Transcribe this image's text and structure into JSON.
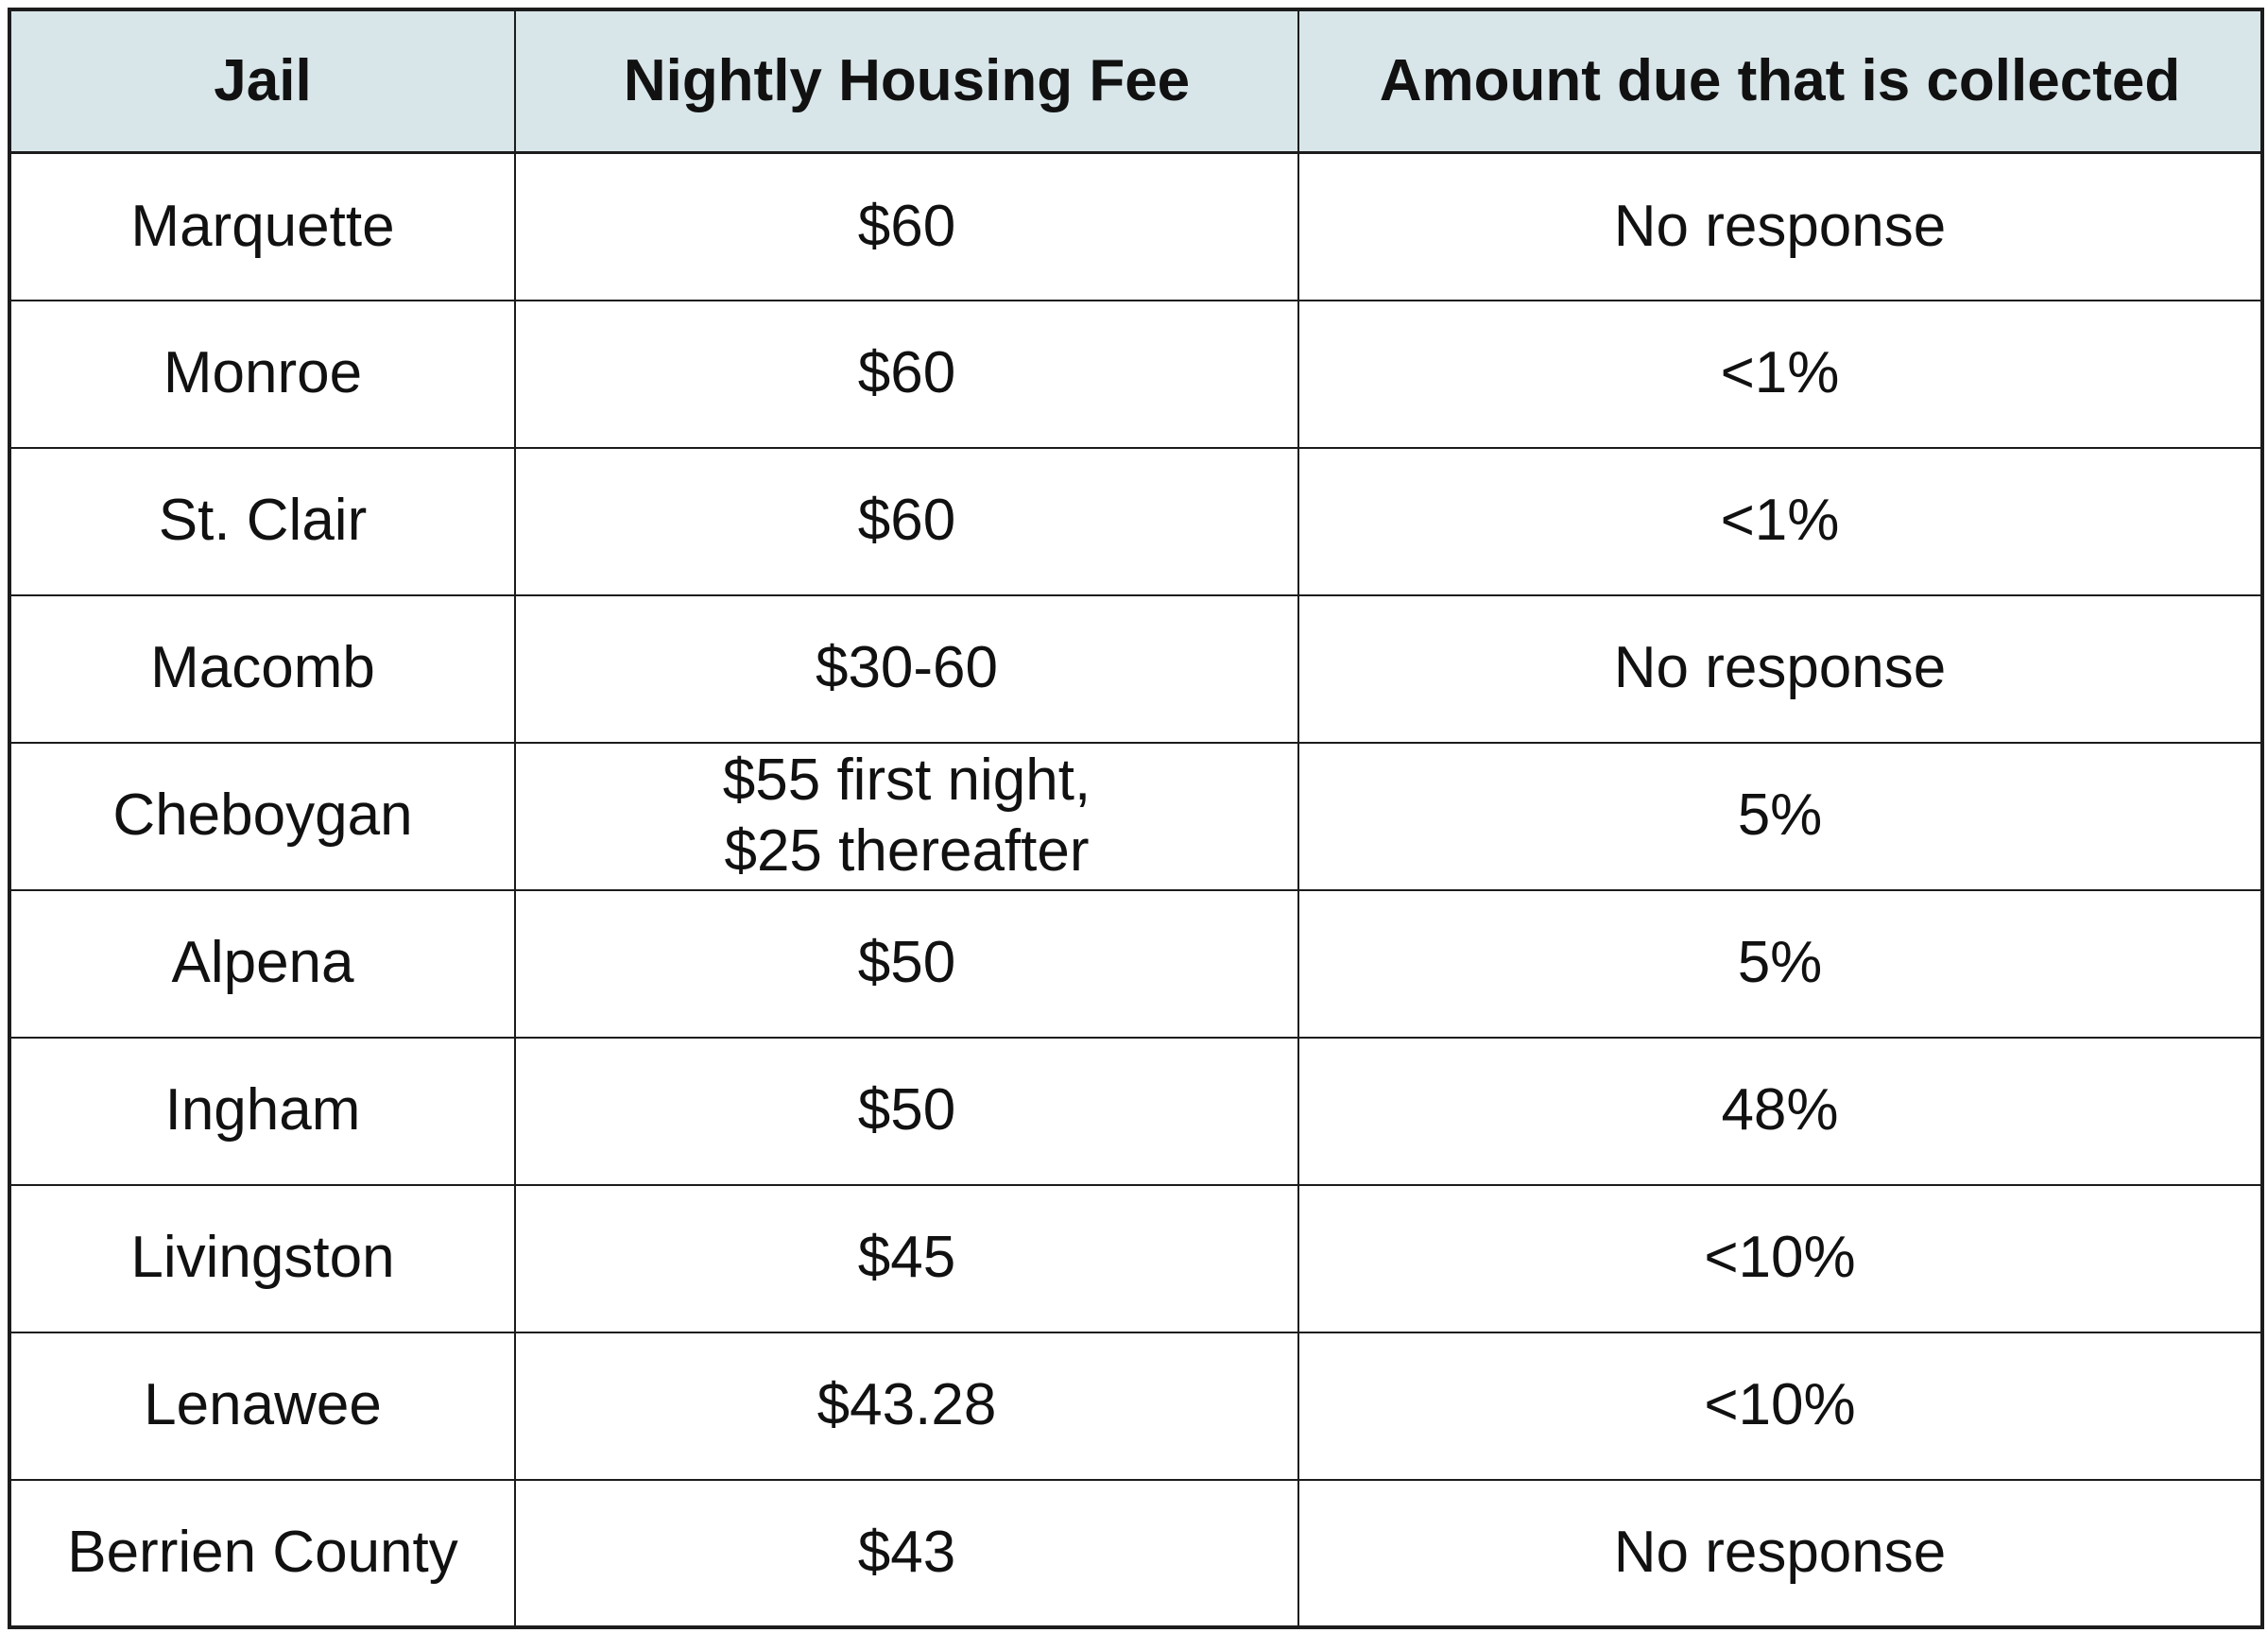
{
  "chart_data": {
    "type": "table",
    "columns": [
      "Jail",
      "Nightly Housing Fee",
      "Amount due that is collected"
    ],
    "rows": [
      [
        "Marquette",
        "$60",
        "No response"
      ],
      [
        "Monroe",
        "$60",
        "<1%"
      ],
      [
        "St. Clair",
        "$60",
        "<1%"
      ],
      [
        "Macomb",
        "$30-60",
        "No response"
      ],
      [
        "Cheboygan",
        "$55 first night,\n$25 thereafter",
        "5%"
      ],
      [
        "Alpena",
        "$50",
        "5%"
      ],
      [
        "Ingham",
        "$50",
        "48%"
      ],
      [
        "Livingston",
        "$45",
        "<10%"
      ],
      [
        "Lenawee",
        "$43.28",
        "<10%"
      ],
      [
        "Berrien County",
        "$43",
        "No response"
      ]
    ],
    "title": "",
    "legend": null,
    "grid": true
  },
  "colors": {
    "header_bg": "#d8e5e9",
    "border": "#1c1c1c",
    "text": "#111111",
    "page_bg": "#ffffff"
  }
}
